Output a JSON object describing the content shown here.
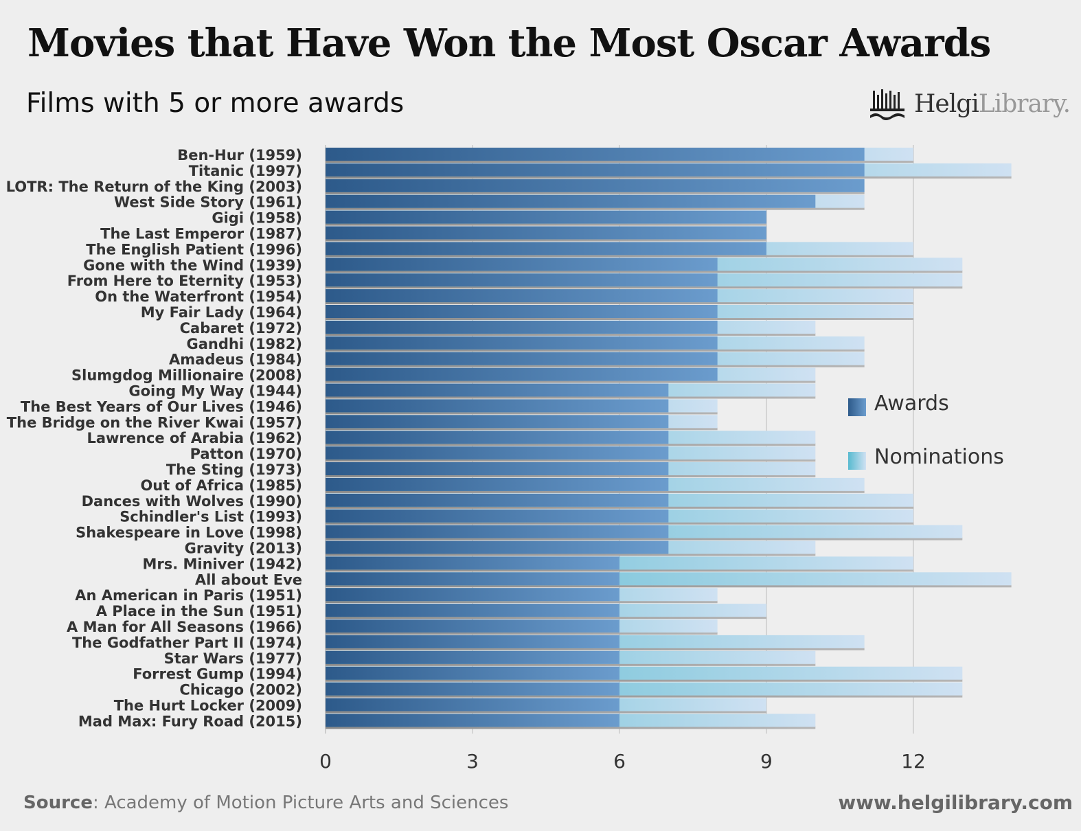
{
  "header": {
    "title": "Movies that Have Won the Most Oscar Awards",
    "subtitle": "Films with 5 or more awards",
    "logo_bold": "Helgi",
    "logo_light": "Library."
  },
  "footer": {
    "source_label": "Source",
    "source_text": ": Academy of Motion Picture Arts and Sciences",
    "website": "www.helgilibrary.com"
  },
  "colors": {
    "awards_dark": "#2f5d8c",
    "awards_light": "#6a9bcc",
    "nominations_dark": "#5bbcd0",
    "nominations_light": "#c9dff0",
    "background": "#eeeeee"
  },
  "chart_data": {
    "type": "bar",
    "orientation": "horizontal",
    "title": "Movies that Have Won the Most Oscar Awards",
    "subtitle": "Films with 5 or more awards",
    "categories": [
      "Ben-Hur (1959)",
      "Titanic (1997)",
      "LOTR: The Return of the King (2003)",
      "West Side Story (1961)",
      "Gigi (1958)",
      "The Last Emperor (1987)",
      "The English Patient (1996)",
      "Gone with the Wind (1939)",
      "From Here to Eternity (1953)",
      "On the Waterfront (1954)",
      "My Fair Lady (1964)",
      "Cabaret (1972)",
      "Gandhi (1982)",
      "Amadeus (1984)",
      "Slumgdog Millionaire (2008)",
      "Going My Way (1944)",
      "The Best Years of Our Lives (1946)",
      "The Bridge on the River Kwai (1957)",
      "Lawrence of Arabia (1962)",
      "Patton (1970)",
      "The Sting (1973)",
      "Out of Africa (1985)",
      "Dances with Wolves (1990)",
      "Schindler's List (1993)",
      "Shakespeare in Love (1998)",
      "Gravity (2013)",
      "Mrs. Miniver (1942)",
      "All about Eve",
      "An American in Paris (1951)",
      "A Place in the Sun (1951)",
      "A Man for All Seasons (1966)",
      "The Godfather Part II (1974)",
      "Star Wars (1977)",
      "Forrest Gump (1994)",
      "Chicago (2002)",
      "The Hurt Locker (2009)",
      "Mad Max: Fury Road (2015)"
    ],
    "series": [
      {
        "name": "Awards",
        "values": [
          11,
          11,
          11,
          10,
          9,
          9,
          9,
          8,
          8,
          8,
          8,
          8,
          8,
          8,
          8,
          7,
          7,
          7,
          7,
          7,
          7,
          7,
          7,
          7,
          7,
          7,
          6,
          6,
          6,
          6,
          6,
          6,
          6,
          6,
          6,
          6,
          6
        ]
      },
      {
        "name": "Nominations",
        "values": [
          12,
          14,
          11,
          11,
          9,
          9,
          12,
          13,
          13,
          12,
          12,
          10,
          11,
          11,
          10,
          10,
          8,
          8,
          10,
          10,
          10,
          11,
          12,
          12,
          13,
          10,
          12,
          14,
          8,
          9,
          8,
          11,
          10,
          13,
          13,
          9,
          10
        ]
      }
    ],
    "xticks": [
      0,
      3,
      6,
      9,
      12
    ],
    "xlim": [
      0,
      14
    ],
    "grid": true,
    "legend_position": "right"
  }
}
